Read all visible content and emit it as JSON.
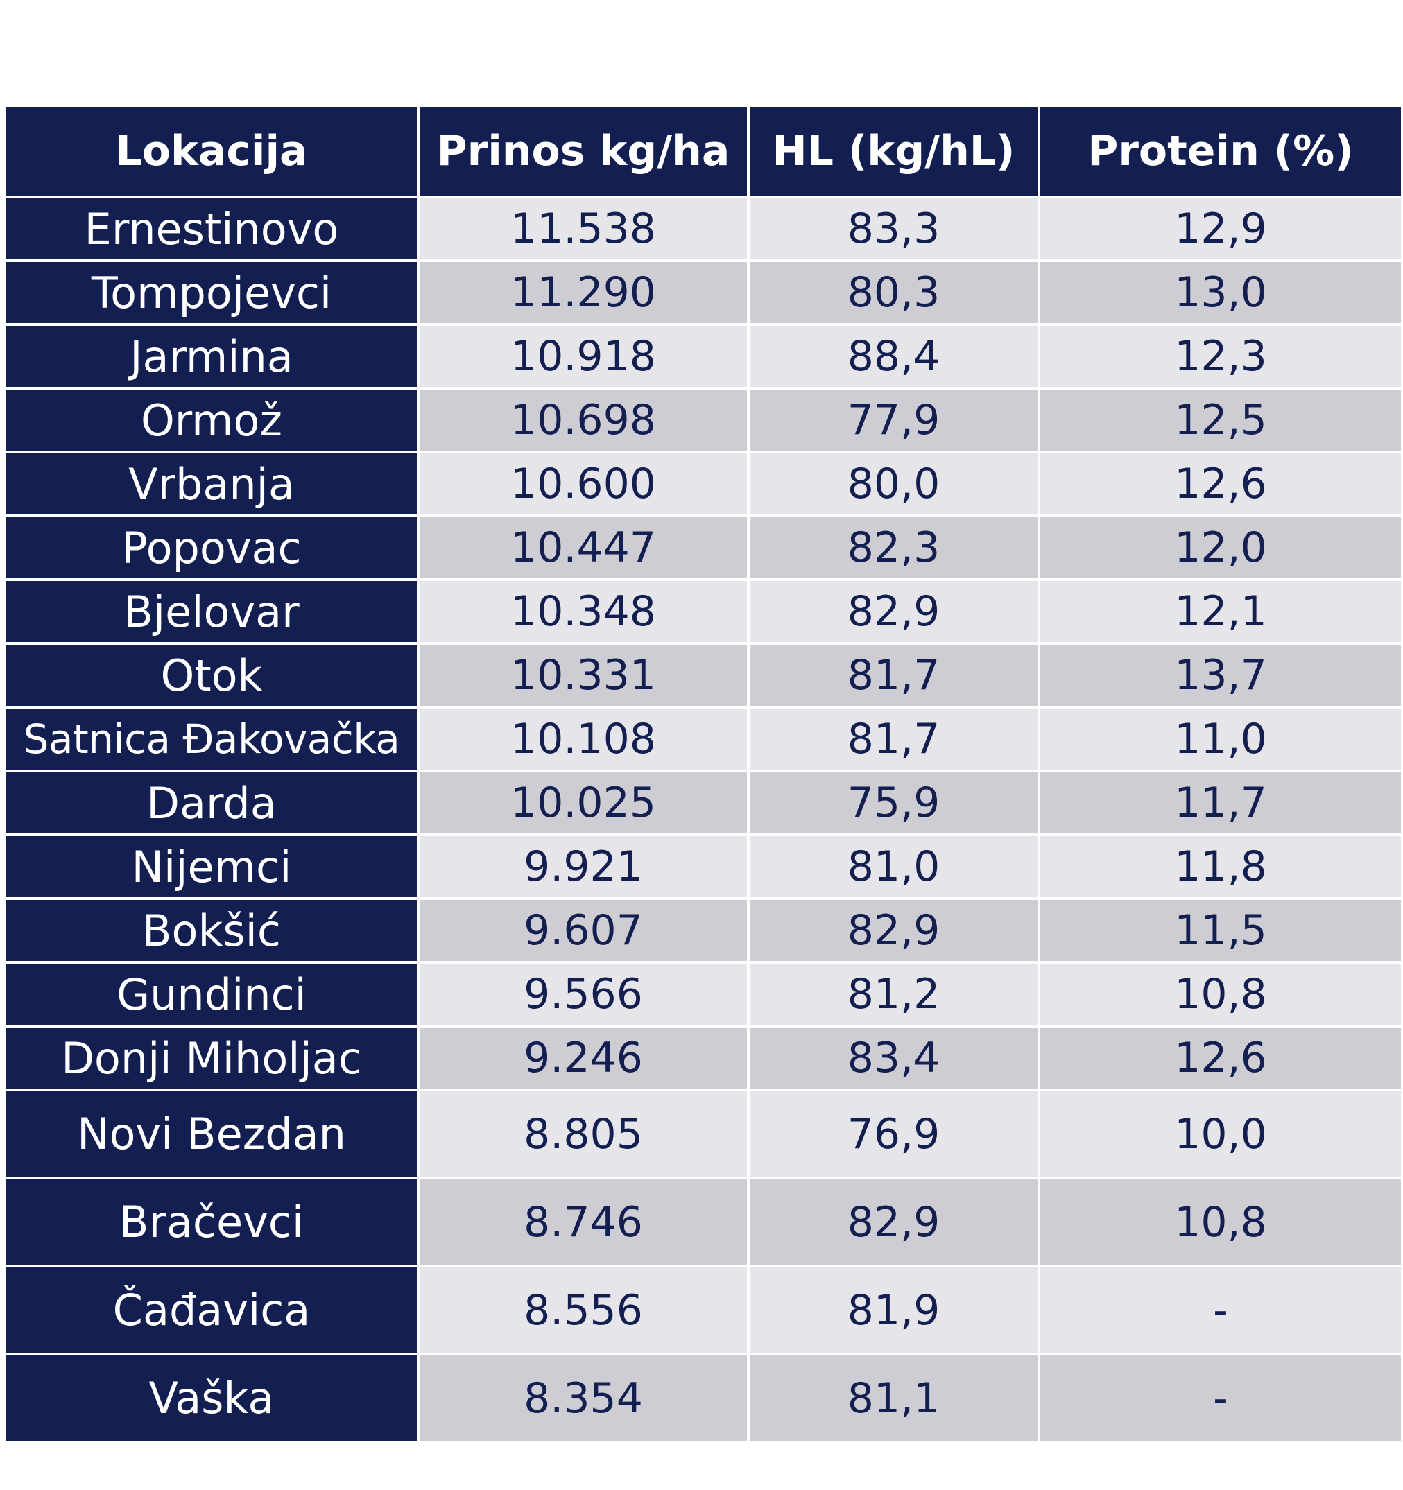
{
  "table": {
    "headers": [
      "Lokacija",
      "Prinos kg/ha",
      "HL (kg/hL)",
      "Protein (%)"
    ],
    "rows": [
      [
        "Ernestinovo",
        "11.538",
        "83,3",
        "12,9"
      ],
      [
        "Tompojevci",
        "11.290",
        "80,3",
        "13,0"
      ],
      [
        "Jarmina",
        "10.918",
        "88,4",
        "12,3"
      ],
      [
        "Ormož",
        "10.698",
        "77,9",
        "12,5"
      ],
      [
        "Vrbanja",
        "10.600",
        "80,0",
        "12,6"
      ],
      [
        "Popovac",
        "10.447",
        "82,3",
        "12,0"
      ],
      [
        "Bjelovar",
        "10.348",
        "82,9",
        "12,1"
      ],
      [
        "Otok",
        "10.331",
        "81,7",
        "13,7"
      ],
      [
        "Satnica Đakovačka",
        "10.108",
        "81,7",
        "11,0"
      ],
      [
        "Darda",
        "10.025",
        "75,9",
        "11,7"
      ],
      [
        "Nijemci",
        "9.921",
        "81,0",
        "11,8"
      ],
      [
        "Bokšić",
        "9.607",
        "82,9",
        "11,5"
      ],
      [
        "Gundinci",
        "9.566",
        "81,2",
        "10,8"
      ],
      [
        "Donji Miholjac",
        "9.246",
        "83,4",
        "12,6"
      ],
      [
        "Novi Bezdan",
        "8.805",
        "76,9",
        "10,0"
      ],
      [
        "Bračevci",
        "8.746",
        "82,9",
        "10,8"
      ],
      [
        "Čađavica",
        "8.556",
        "81,9",
        "-"
      ],
      [
        "Vaška",
        "8.354",
        "81,1",
        "-"
      ]
    ]
  }
}
